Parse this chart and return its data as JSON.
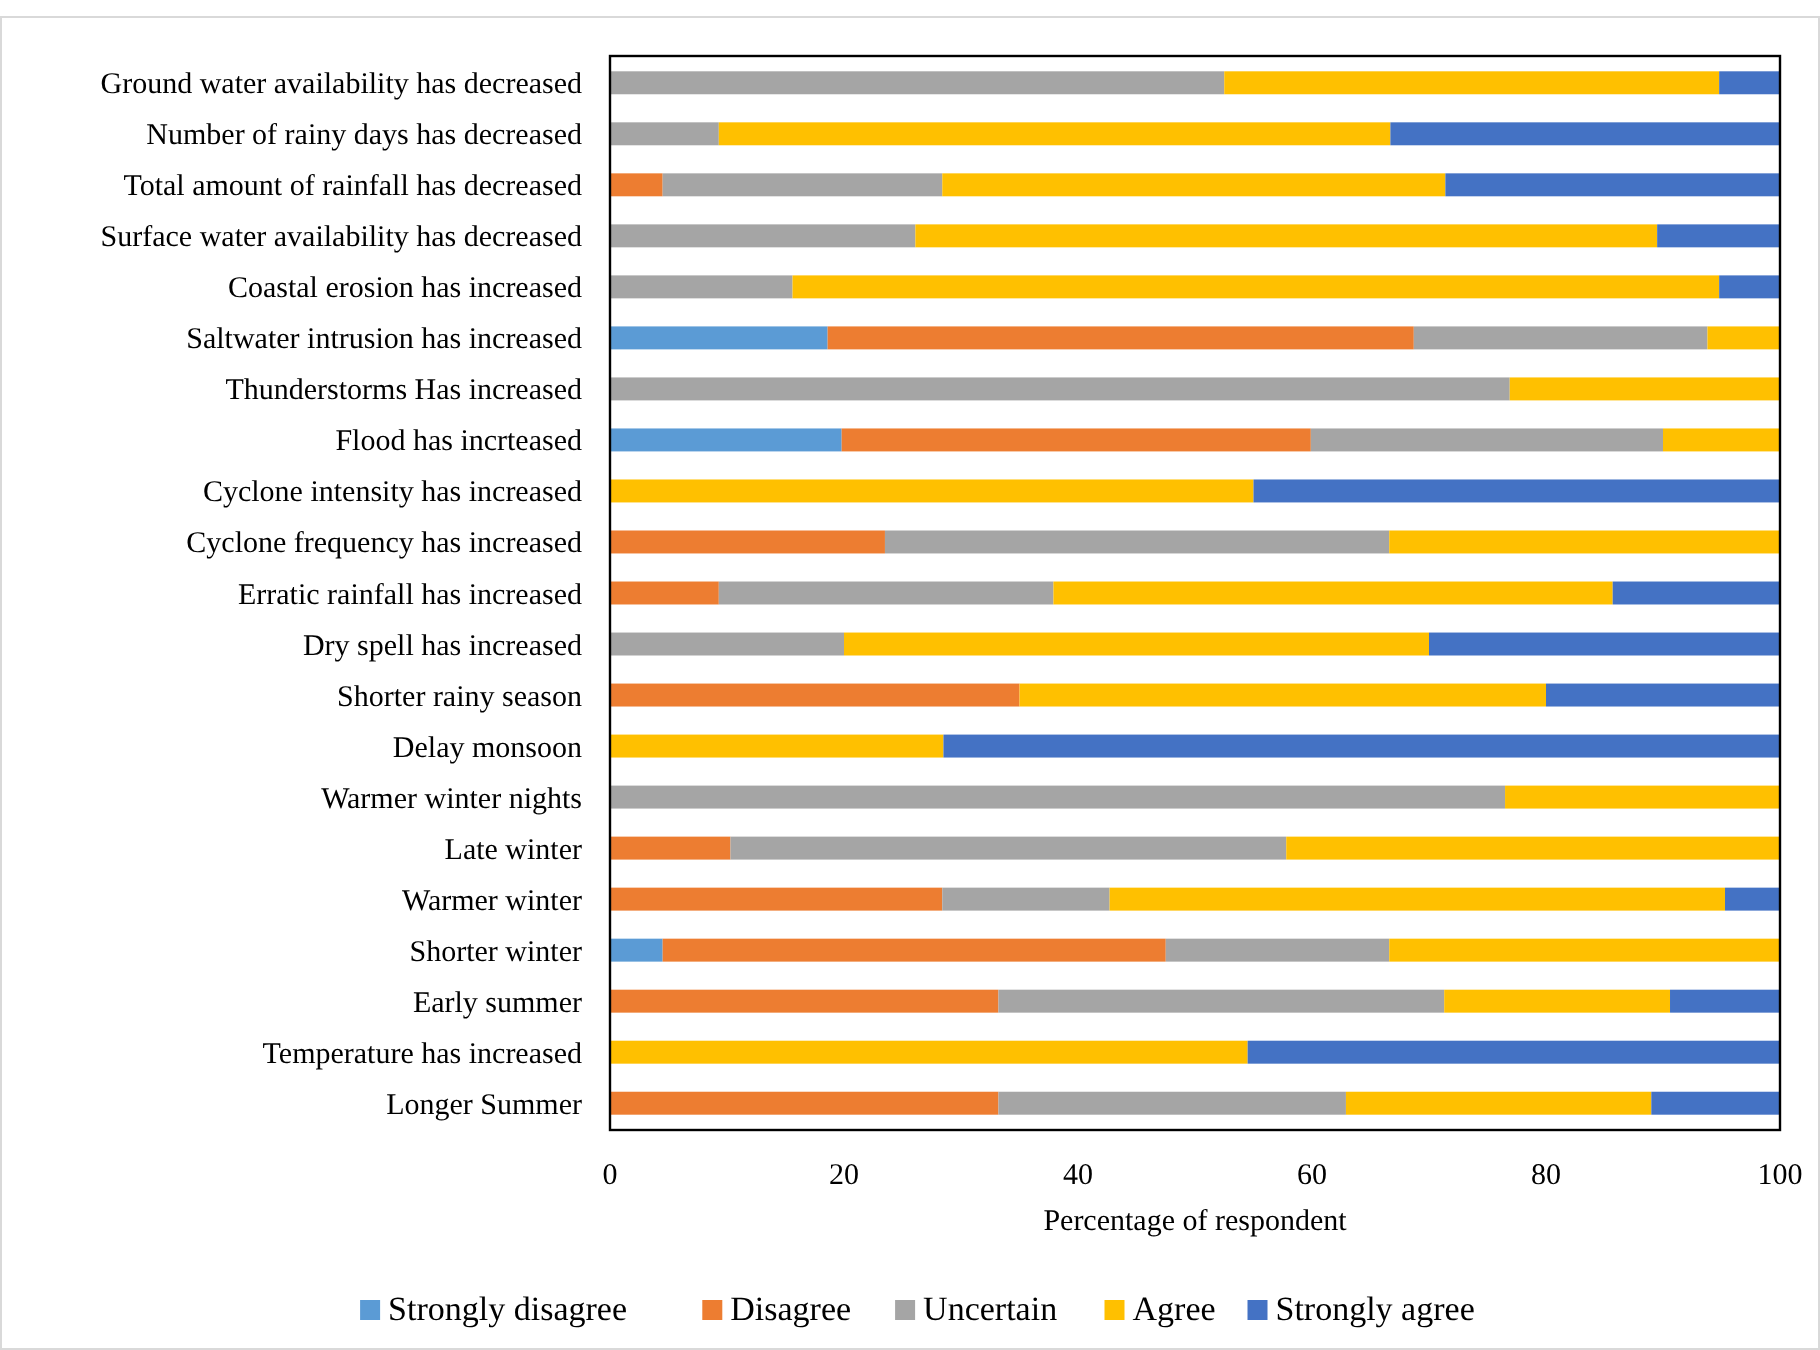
{
  "chart_data": {
    "type": "bar",
    "orientation": "horizontal",
    "stacked": true,
    "xlabel": "Percentage of respondent",
    "categories": [
      "Ground water availability has decreased",
      "Number of rainy days has decreased",
      "Total amount of rainfall has decreased",
      "Surface water availability has decreased",
      "Coastal erosion has increased",
      "Saltwater intrusion has increased",
      "Thunderstorms Has increased",
      "Flood has incrteased",
      "Cyclone intensity has increased",
      "Cyclone frequency has increased",
      "Erratic rainfall has increased",
      "Dry spell has increased",
      "Shorter rainy season",
      "Delay monsoon",
      "Warmer winter nights",
      "Late winter",
      "Warmer winter",
      "Shorter winter",
      "Early summer",
      "Temperature has increased",
      "Longer Summer"
    ],
    "series": [
      {
        "name": "Strongly disagree",
        "color": "#5b9bd5",
        "values": [
          0,
          0,
          0,
          0,
          0,
          18.6,
          0,
          19.8,
          0,
          0,
          0,
          0,
          0,
          0,
          0,
          0,
          0,
          4.5,
          0,
          0,
          0
        ]
      },
      {
        "name": "Disagree",
        "color": "#ed7d31",
        "values": [
          0,
          0,
          4.5,
          0,
          0,
          50.1,
          0,
          40.1,
          0,
          23.5,
          9.3,
          0,
          35,
          0,
          0,
          10.3,
          28.4,
          43,
          33.2,
          0,
          33.2
        ]
      },
      {
        "name": "Uncertain",
        "color": "#a5a5a5",
        "values": [
          52.5,
          9.3,
          23.9,
          26.1,
          15.6,
          25.1,
          76.9,
          30.1,
          0,
          43.1,
          28.6,
          20,
          0,
          0,
          76.5,
          47.5,
          14.3,
          19.1,
          38.1,
          0,
          29.7
        ]
      },
      {
        "name": "Agree",
        "color": "#ffc000",
        "values": [
          42.3,
          57.4,
          43,
          63.4,
          79.2,
          6.2,
          23.1,
          10,
          55,
          33.4,
          47.8,
          50,
          45,
          28.5,
          23.5,
          42.2,
          52.6,
          33.4,
          19.3,
          54.5,
          26.1
        ]
      },
      {
        "name": "Strongly agree",
        "color": "#4472c4",
        "values": [
          5.2,
          33.3,
          28.6,
          10.5,
          5.2,
          0,
          0,
          0,
          45,
          0,
          14.3,
          30,
          20,
          71.5,
          0,
          0,
          4.7,
          0,
          9.4,
          45.5,
          11
        ]
      }
    ],
    "xlim": [
      0,
      100
    ],
    "xticks": [
      0,
      20,
      40,
      60,
      80,
      100
    ],
    "grid": false,
    "legend": "bottom"
  }
}
